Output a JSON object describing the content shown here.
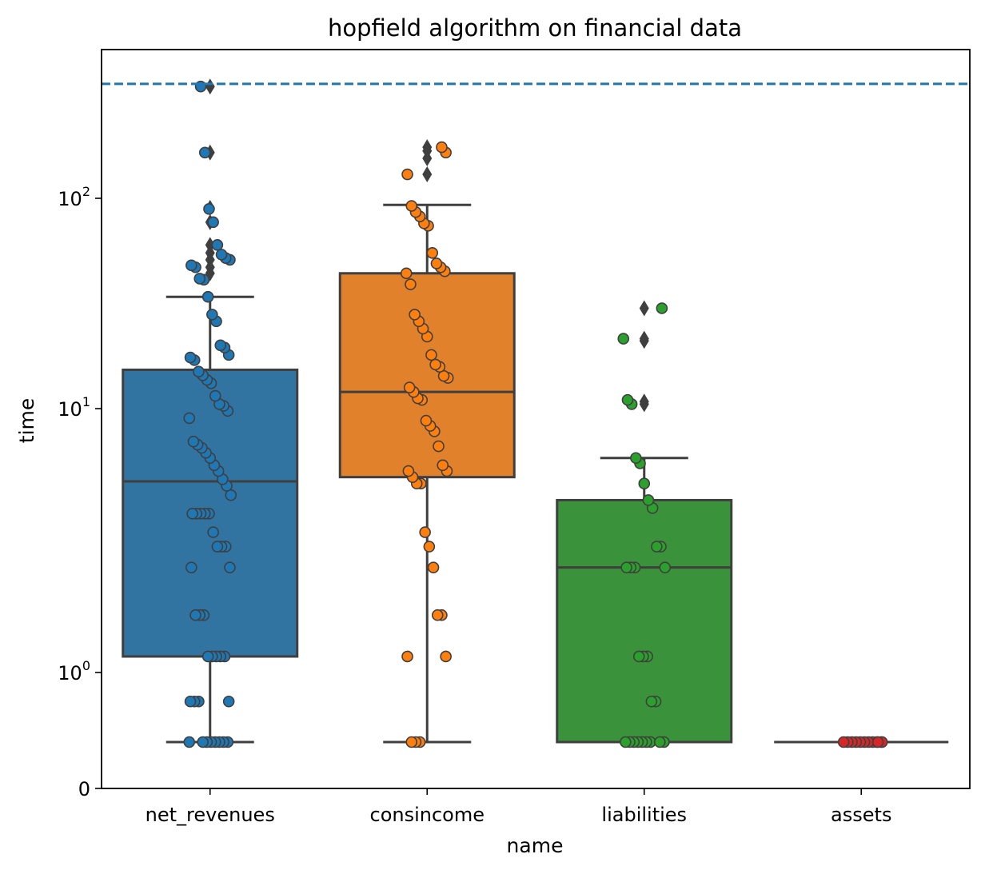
{
  "chart_data": {
    "type": "box",
    "title": "hopfield algorithm on financial data",
    "xlabel": "name",
    "ylabel": "time",
    "yscale": "symlog",
    "linthresh": 1,
    "y_ticks": [
      {
        "value": 0,
        "base": "0",
        "exp": ""
      },
      {
        "value": 1,
        "base": "10",
        "exp": "0"
      },
      {
        "value": 10,
        "base": "10",
        "exp": "1"
      },
      {
        "value": 100,
        "base": "10",
        "exp": "2"
      }
    ],
    "categories": [
      "net_revenues",
      "consincome",
      "liabilities",
      "assets"
    ],
    "colors": [
      "#3274a1",
      "#e1812c",
      "#3a923a",
      "#c03d3e"
    ],
    "point_colors": [
      "#1f77b4",
      "#ff7f0e",
      "#2ca02c",
      "#d62728"
    ],
    "reference_line": {
      "value": 350,
      "style": "dashed",
      "color": "#1f77b4"
    },
    "boxes": [
      {
        "name": "net_revenues",
        "q1": 1.15,
        "median": 5.3,
        "q3": 15.3,
        "whisker_low": 0.4,
        "whisker_high": 34,
        "outliers": [
          44,
          47,
          51,
          55,
          60,
          77,
          90,
          165,
          340
        ]
      },
      {
        "name": "consincome",
        "q1": 5.5,
        "median": 12,
        "q3": 44,
        "whisker_low": 0.4,
        "whisker_high": 93,
        "outliers": [
          130,
          155,
          168,
          175
        ]
      },
      {
        "name": "liabilities",
        "q1": 0.4,
        "median": 2.5,
        "q3": 4.5,
        "whisker_low": 0.4,
        "whisker_high": 6.5,
        "outliers": [
          10.5,
          10.8,
          21,
          21.5,
          30
        ]
      },
      {
        "name": "assets",
        "q1": 0.4,
        "median": 0.4,
        "q3": 0.4,
        "whisker_low": 0.4,
        "whisker_high": 0.4,
        "outliers": []
      }
    ],
    "points": [
      [
        0.4,
        0.4,
        0.4,
        0.4,
        0.4,
        0.4,
        0.4,
        0.4,
        0.75,
        0.75,
        0.75,
        0.75,
        1.15,
        1.15,
        1.15,
        1.15,
        1.15,
        1.65,
        1.65,
        1.65,
        2.5,
        2.5,
        3.0,
        3.0,
        3.0,
        3.4,
        4.0,
        4.0,
        4.0,
        4.0,
        4.0,
        4.7,
        5.1,
        5.4,
        5.8,
        6.1,
        6.5,
        6.8,
        7.1,
        7.3,
        7.5,
        9.2,
        9.8,
        10.3,
        10.5,
        11.5,
        13.2,
        13.7,
        14.4,
        15.0,
        17.0,
        17.5,
        18.0,
        19.5,
        20.0,
        26.0,
        28.0,
        34.0,
        41.0,
        41.5,
        47.0,
        48.0,
        51.0,
        52.0,
        54.0,
        60.0,
        77.0,
        89.0,
        165.0,
        340.0
      ],
      [
        0.4,
        0.4,
        0.4,
        1.15,
        1.15,
        1.65,
        1.65,
        2.5,
        3.0,
        3.4,
        5.2,
        5.2,
        5.5,
        5.8,
        5.8,
        6.1,
        7.2,
        8.2,
        8.6,
        9.0,
        11.0,
        11.2,
        12.0,
        12.6,
        14.0,
        14.3,
        15.8,
        16.2,
        18.0,
        22.0,
        24.0,
        26.0,
        28.0,
        39.0,
        44.0,
        45.0,
        47.0,
        49.0,
        55.0,
        74.0,
        76.0,
        82.0,
        86.0,
        92.0,
        130.0,
        165.0,
        175.0
      ],
      [
        0.4,
        0.4,
        0.4,
        0.4,
        0.4,
        0.4,
        0.4,
        0.4,
        0.4,
        0.75,
        0.75,
        1.15,
        1.15,
        1.15,
        2.5,
        2.5,
        2.5,
        2.5,
        3.0,
        3.0,
        4.2,
        4.5,
        5.2,
        6.2,
        6.5,
        10.5,
        11.0,
        21.5,
        30.0
      ],
      [
        0.4,
        0.4,
        0.4,
        0.4,
        0.4,
        0.4,
        0.4,
        0.4,
        0.4,
        0.4,
        0.4,
        0.4
      ]
    ]
  }
}
